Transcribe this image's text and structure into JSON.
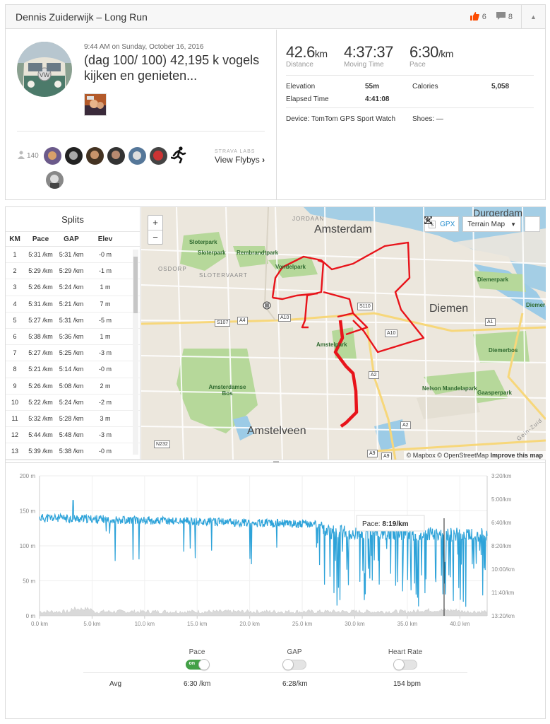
{
  "header": {
    "title": "Dennis Zuiderwijk – Long Run",
    "kudos_count": "6",
    "comment_count": "8"
  },
  "activity": {
    "date": "9:44 AM on Sunday, October 16, 2016",
    "description": "(dag 100/ 100) 42,195 k vogels kijken en genieten...",
    "achievement_count": "140",
    "flyby_label": "STRAVA LABS",
    "flyby_link": "View Flybys"
  },
  "stats": {
    "distance": {
      "value": "42.6",
      "unit": "km",
      "label": "Distance"
    },
    "moving_time": {
      "value": "4:37:37",
      "unit": "",
      "label": "Moving Time"
    },
    "pace": {
      "value": "6:30",
      "unit": "/km",
      "label": "Pace"
    },
    "elevation_label": "Elevation",
    "elevation_value": "55m",
    "calories_label": "Calories",
    "calories_value": "5,058",
    "elapsed_label": "Elapsed Time",
    "elapsed_value": "4:41:08",
    "device": "Device: TomTom GPS Sport Watch",
    "shoes": "Shoes: —"
  },
  "splits": {
    "title": "Splits",
    "headers": [
      "KM",
      "Pace",
      "GAP",
      "Elev"
    ],
    "rows": [
      [
        "1",
        "5:31 /km",
        "5:31 /km",
        "-0 m"
      ],
      [
        "2",
        "5:29 /km",
        "5:29 /km",
        "-1 m"
      ],
      [
        "3",
        "5:26 /km",
        "5:24 /km",
        "1 m"
      ],
      [
        "4",
        "5:31 /km",
        "5:21 /km",
        "7 m"
      ],
      [
        "5",
        "5:27 /km",
        "5:31 /km",
        "-5 m"
      ],
      [
        "6",
        "5:38 /km",
        "5:36 /km",
        "1 m"
      ],
      [
        "7",
        "5:27 /km",
        "5:25 /km",
        "-3 m"
      ],
      [
        "8",
        "5:21 /km",
        "5:14 /km",
        "-0 m"
      ],
      [
        "9",
        "5:26 /km",
        "5:08 /km",
        "2 m"
      ],
      [
        "10",
        "5:22 /km",
        "5:24 /km",
        "-2 m"
      ],
      [
        "11",
        "5:32 /km",
        "5:28 /km",
        "3 m"
      ],
      [
        "12",
        "5:44 /km",
        "5:48 /km",
        "-3 m"
      ],
      [
        "13",
        "5:39 /km",
        "5:38 /km",
        "-0 m"
      ]
    ]
  },
  "map": {
    "gpx_label": "GPX",
    "gpx_prefix": "s",
    "zoom_in": "+",
    "zoom_out": "−",
    "style_label": "Terrain Map",
    "labels": {
      "amsterdam": "Amsterdam",
      "amstelveen": "Amstelveen",
      "diemen": "Diemen",
      "durgerdam": "Durgerdam",
      "jordaan": "JORDAAN",
      "osdorp": "OSDORP",
      "slotervaart": "SLOTERVAART",
      "sloterpark_1": "Sloterpark",
      "sloterpark_2": "Sloterpark",
      "rembrandtpark": "Rembrandtpark",
      "vondelpark": "Vondelpark",
      "amstelpark": "Amstelpark",
      "amsterdamse_bos": "Amsterdamse Bos",
      "diemerpark": "Diemerpark",
      "diemerbos": "Diemerbos",
      "nelson_mandelapark": "Nelson Mandelapark",
      "gaasperpark": "Gaasperpark",
      "diemer_edge": "Diemer",
      "gein_zuid": "Gein-Zuid"
    },
    "roads": {
      "a10_w": "A10",
      "a10_e": "A10",
      "a4": "A4",
      "s107": "S107",
      "s110": "S110",
      "a1": "A1",
      "a2_n": "A2",
      "a2_s": "A2",
      "a9_w": "A9",
      "a9_e": "A9",
      "n232": "N232"
    },
    "attribution_mapbox": "© Mapbox",
    "attribution_osm": "© OpenStreetMap",
    "attribution_improve": "Improve this map",
    "route_color": "#e8141b"
  },
  "chart_data": {
    "type": "area",
    "x_unit": "km",
    "x_ticks": [
      "0.0 km",
      "5.0 km",
      "10.0 km",
      "15.0 km",
      "20.0 km",
      "25.0 km",
      "30.0 km",
      "35.0 km",
      "40.0 km"
    ],
    "xlim": [
      0,
      42.6
    ],
    "left_ticks": [
      "200 m",
      "150 m",
      "100 m",
      "50 m",
      "0 m"
    ],
    "ylim_left": [
      0,
      200
    ],
    "right_ticks": [
      "3:20/km",
      "5:00/km",
      "6:40/km",
      "8:20/km",
      "10:00/km",
      "11:40/km",
      "13:20/km"
    ],
    "series": [
      {
        "name": "Pace",
        "color": "#2ea3d9"
      },
      {
        "name": "Elevation",
        "color": "#d3d3d3"
      }
    ],
    "tooltip": {
      "label": "Pace:",
      "value": "8:19/km",
      "x_km": 38.5
    },
    "grid": true
  },
  "toggles": {
    "pace": {
      "label": "Pace",
      "state": "on"
    },
    "gap": {
      "label": "GAP",
      "state": "off"
    },
    "heart_rate": {
      "label": "Heart Rate",
      "state": "off"
    },
    "on_text": "on"
  },
  "averages": {
    "label": "Avg",
    "pace": "6:30 /km",
    "gap": "6:28/km",
    "heart_rate": "154 bpm"
  },
  "colors": {
    "strava_orange": "#fc4c02",
    "link_blue": "#2a8fce",
    "toggle_green": "#43a047"
  }
}
